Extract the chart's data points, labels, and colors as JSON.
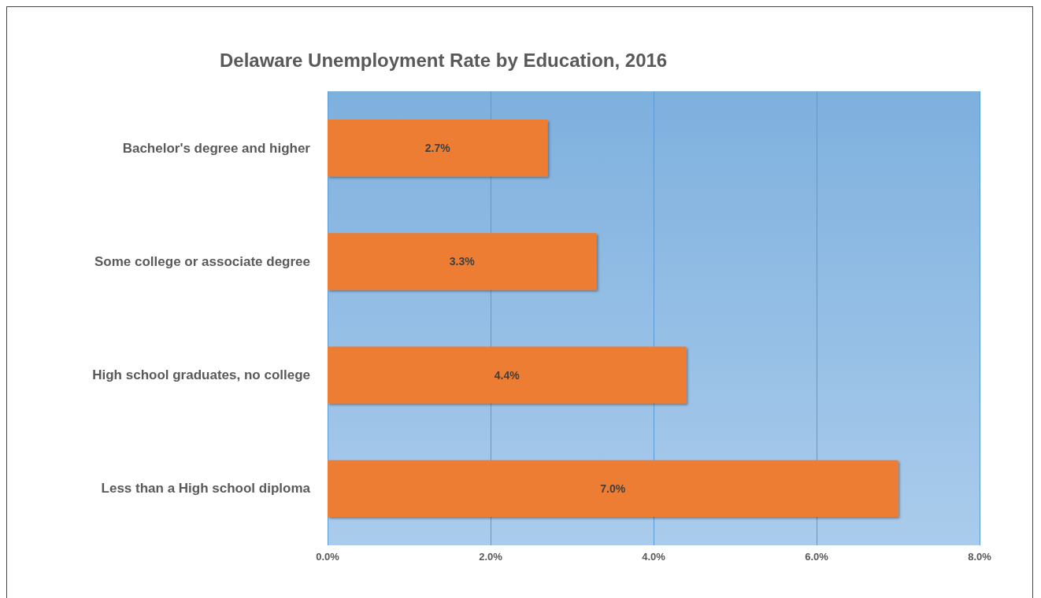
{
  "chart_data": {
    "type": "bar",
    "orientation": "horizontal",
    "title": "Delaware Unemployment Rate by Education, 2016",
    "categories": [
      "Bachelor's degree and higher",
      "Some college or associate degree",
      "High school graduates, no college",
      "Less than a High school diploma"
    ],
    "values": [
      2.7,
      3.3,
      4.4,
      7.0
    ],
    "value_labels": [
      "2.7%",
      "3.3%",
      "4.4%",
      "7.0%"
    ],
    "color": "#ed7d31",
    "xlim": [
      0,
      8
    ],
    "xticks": [
      {
        "value": 0,
        "label": "0.0%"
      },
      {
        "value": 2,
        "label": "2.0%"
      },
      {
        "value": 4,
        "label": "4.0%"
      },
      {
        "value": 6,
        "label": "6.0%"
      },
      {
        "value": 8,
        "label": "8.0%"
      }
    ],
    "grid": "x"
  }
}
